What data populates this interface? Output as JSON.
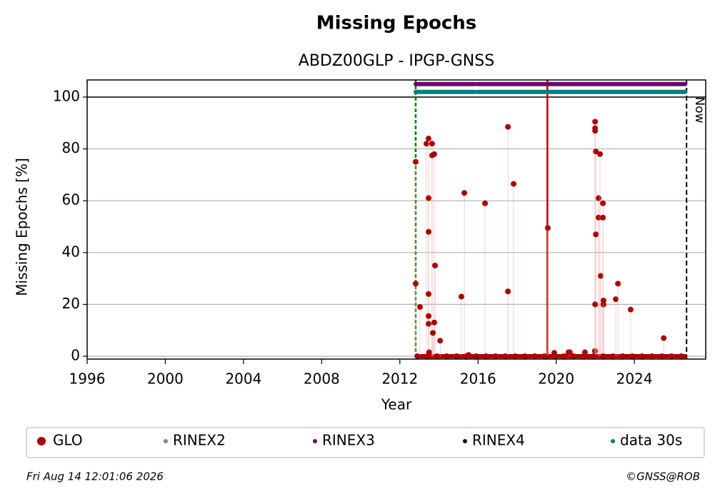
{
  "chart_data": {
    "type": "scatter",
    "title": "Missing Epochs",
    "subtitle": "ABDZ00GLP - IPGP-GNSS",
    "x_label": "Year",
    "y_label": "Missing Epochs [%]",
    "xlim": [
      1996,
      2027.65
    ],
    "ylim": [
      -1.1,
      106.6
    ],
    "xticks": [
      1996,
      2000,
      2004,
      2008,
      2012,
      2016,
      2020,
      2024
    ],
    "yticks": [
      0,
      20,
      40,
      60,
      80,
      100
    ],
    "grid": true,
    "hline": 100,
    "vlines": [
      {
        "x": 2012.81,
        "color": "#008000"
      },
      {
        "x": 2019.55,
        "color": "#c00000"
      }
    ],
    "now": {
      "x": 2026.67,
      "label": "Now"
    },
    "series": [
      {
        "name": "GLO",
        "color": "#b00000",
        "marker": "dot",
        "x": [
          2012.81,
          2012.81,
          2013.03,
          2013.36,
          2013.47,
          2013.47,
          2013.47,
          2013.47,
          2013.47,
          2013.47,
          2013.5,
          2013.65,
          2013.65,
          2013.76,
          2013.8,
          2013.76,
          2013.69,
          2014.06,
          2015.15,
          2015.3,
          2015.52,
          2016.36,
          2017.53,
          2017.53,
          2017.82,
          2019.57,
          2019.9,
          2020.63,
          2020.7,
          2021.47,
          2021.98,
          2021.99,
          2021.99,
          2021.99,
          2022.03,
          2022.03,
          2021.99,
          2022.17,
          2022.17,
          2022.24,
          2022.28,
          2022.39,
          2022.39,
          2022.42,
          2022.42,
          2023.05,
          2023.16,
          2023.81,
          2025.5,
          2012.9,
          2013.4,
          2013.9,
          2014.4,
          2014.9,
          2015.4,
          2015.9,
          2016.4,
          2016.9,
          2017.4,
          2017.9,
          2018.4,
          2018.9,
          2019.4,
          2019.9,
          2020.4,
          2020.9,
          2021.4,
          2021.9,
          2022.4,
          2022.9,
          2023.4,
          2023.9,
          2024.4,
          2024.9,
          2025.4,
          2025.9,
          2026.4
        ],
        "values": [
          75,
          28,
          19,
          82,
          84,
          61,
          48,
          24,
          15.5,
          12.5,
          1.5,
          82,
          77.5,
          78,
          35,
          13,
          9,
          6,
          23,
          63,
          0.5,
          59,
          88.5,
          25,
          66.5,
          49.5,
          1.3,
          1.5,
          1.5,
          1.5,
          2,
          90.5,
          88,
          87,
          79,
          47,
          20,
          61,
          53.5,
          78,
          31,
          59,
          53.5,
          20,
          21.5,
          22,
          28,
          18,
          7,
          0,
          0,
          0,
          0,
          0,
          0,
          0,
          0,
          0,
          0,
          0,
          0,
          0,
          0,
          0,
          0,
          0,
          0,
          0,
          0,
          0,
          0,
          0,
          0,
          0,
          0,
          0,
          0
        ]
      },
      {
        "name": "RINEX2",
        "color": "#7b7bc0",
        "marker": "dot",
        "x": [],
        "values": []
      },
      {
        "name": "RINEX3",
        "color": "#6a0a6a",
        "marker": "band",
        "x": [
          2012.81,
          2015.83,
          2015.85,
          2015.95,
          2019.52,
          2019.55,
          2019.6,
          2026.6
        ],
        "values": [
          105,
          105,
          null,
          105,
          105,
          null,
          105,
          105
        ]
      },
      {
        "name": "RINEX4",
        "color": "#1a0020",
        "marker": "dot",
        "x": [],
        "values": []
      },
      {
        "name": "data 30s",
        "color": "#008080",
        "marker": "band",
        "x": [
          2012.81,
          2015.83,
          2015.85,
          2015.95,
          2019.52,
          2019.55,
          2019.6,
          2026.6
        ],
        "values": [
          102,
          102,
          null,
          102,
          102,
          null,
          102,
          102
        ]
      }
    ],
    "footer_left": "Fri Aug 14 12:01:06 2026",
    "footer_right": "©GNSS@ROB"
  }
}
